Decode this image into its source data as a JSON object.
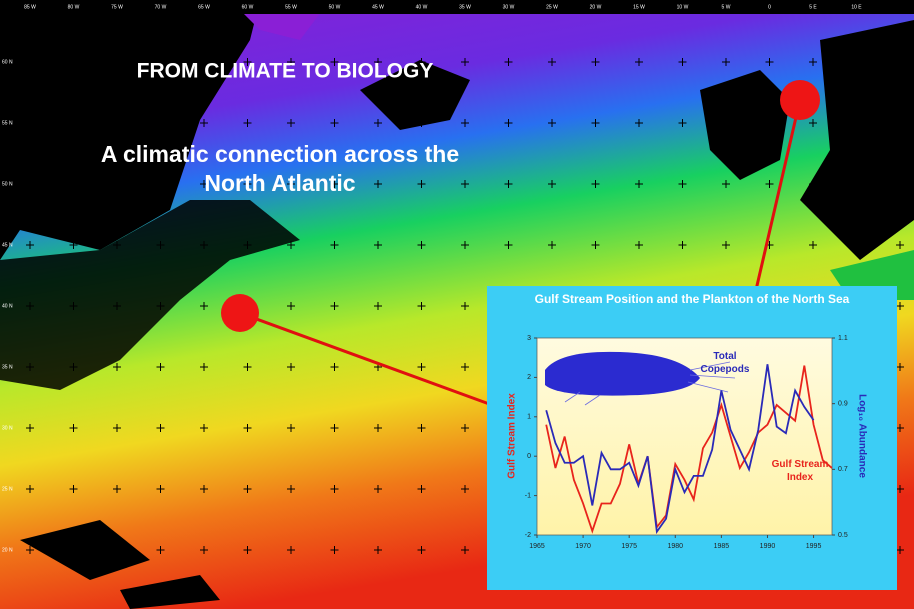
{
  "title": "FROM CLIMATE TO BIOLOGY",
  "subtitle": "A climatic connection across the North Atlantic",
  "map": {
    "longitude_labels": [
      "85 W",
      "80 W",
      "75 W",
      "70 W",
      "65 W",
      "60 W",
      "55 W",
      "50 W",
      "45 W",
      "40 W",
      "35 W",
      "30 W",
      "25 W",
      "20 W",
      "15 W",
      "10 W",
      "5 W",
      "0",
      "5 E",
      "10 E"
    ],
    "latitude_labels": [
      "60 N",
      "55 N",
      "50 N",
      "45 N",
      "40 N",
      "35 N",
      "30 N",
      "25 N",
      "20 N"
    ]
  },
  "chart_data": {
    "type": "line",
    "title": "Gulf Stream Position and the Plankton of the North Sea",
    "ylabel": "Gulf Stream Index",
    "y2label": "Log₁₀ Abundance",
    "annotations": [
      "Total Copepods",
      "Gulf Stream Index"
    ],
    "xlim": [
      1965,
      1997
    ],
    "xticks": [
      1965,
      1970,
      1975,
      1980,
      1985,
      1990,
      1995
    ],
    "ylim": [
      -2,
      3
    ],
    "yticks": [
      -2,
      -1,
      0,
      1,
      2,
      3
    ],
    "y2lim": [
      0.5,
      1.1
    ],
    "y2ticks": [
      0.5,
      0.7,
      0.9,
      1.1
    ],
    "series": [
      {
        "name": "Gulf Stream Index",
        "color": "#e8241c",
        "axis": "y",
        "x": [
          1966,
          1967,
          1968,
          1969,
          1970,
          1971,
          1972,
          1973,
          1974,
          1975,
          1976,
          1977,
          1978,
          1979,
          1980,
          1981,
          1982,
          1983,
          1984,
          1985,
          1986,
          1987,
          1988,
          1989,
          1990,
          1991,
          1992,
          1993,
          1994,
          1995,
          1996,
          1997
        ],
        "values": [
          0.8,
          -0.3,
          0.5,
          -0.6,
          -1.2,
          -1.9,
          -1.2,
          -1.2,
          -0.7,
          0.3,
          -0.7,
          0.0,
          -1.8,
          -1.5,
          -0.2,
          -0.6,
          -1.1,
          0.2,
          0.6,
          1.3,
          0.5,
          -0.3,
          0.1,
          0.6,
          0.8,
          1.3,
          1.1,
          0.9,
          2.3,
          0.8,
          -0.1,
          -0.3
        ]
      },
      {
        "name": "Total Copepods",
        "color": "#2a2ab8",
        "axis": "y2",
        "x": [
          1966,
          1967,
          1968,
          1969,
          1970,
          1971,
          1972,
          1973,
          1974,
          1975,
          1976,
          1977,
          1978,
          1979,
          1980,
          1981,
          1982,
          1983,
          1984,
          1985,
          1986,
          1987,
          1988,
          1989,
          1990,
          1991,
          1992,
          1993,
          1994,
          1995
        ],
        "values": [
          0.88,
          0.78,
          0.72,
          0.72,
          0.74,
          0.59,
          0.75,
          0.7,
          0.7,
          0.72,
          0.65,
          0.74,
          0.51,
          0.55,
          0.7,
          0.63,
          0.68,
          0.68,
          0.76,
          0.94,
          0.82,
          0.76,
          0.7,
          0.82,
          1.02,
          0.83,
          0.81,
          0.94,
          0.89,
          0.85
        ]
      }
    ]
  }
}
